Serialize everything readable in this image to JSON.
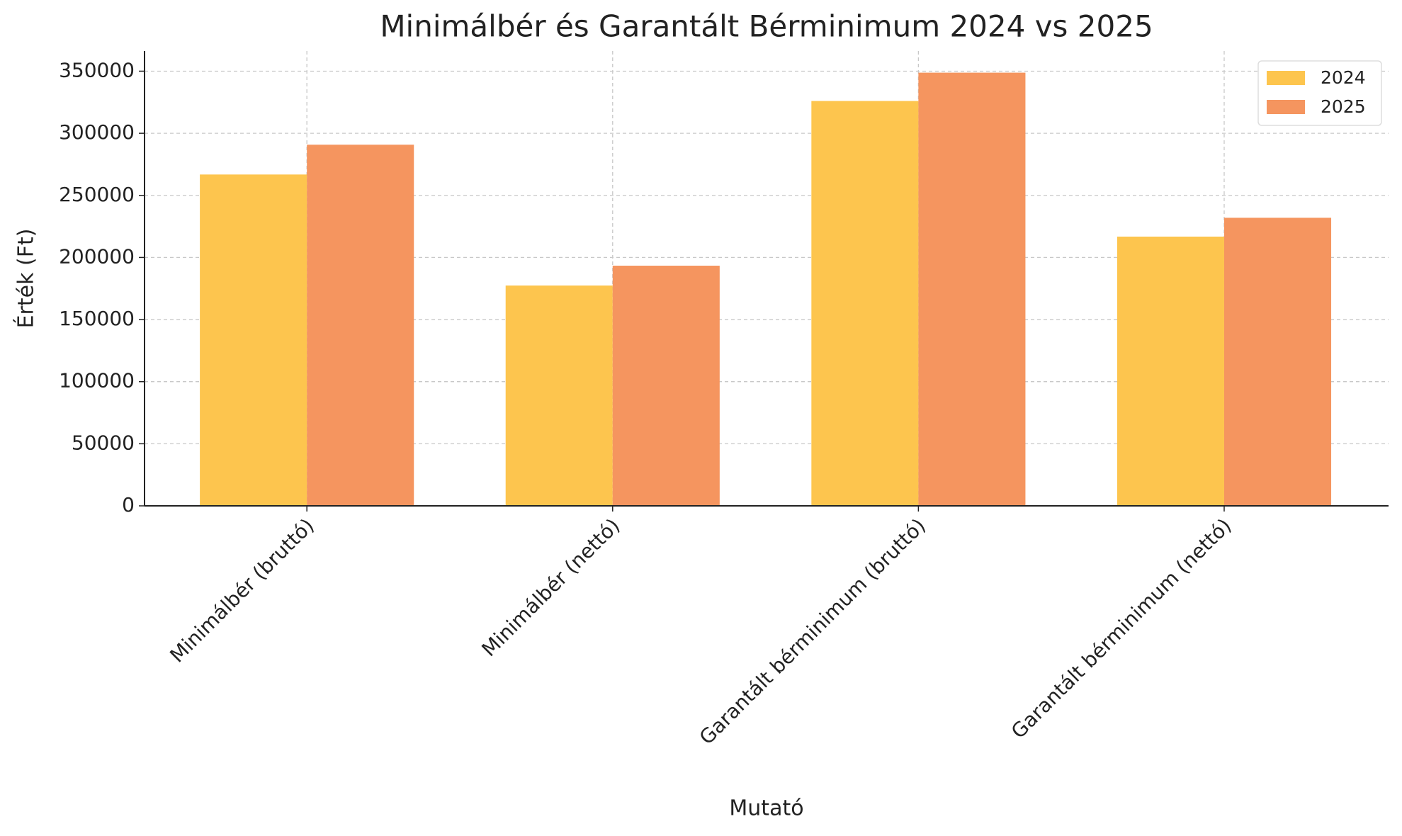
{
  "chart_data": {
    "type": "bar",
    "title": "Minimálbér és Garantált Bérminimum 2024 vs 2025",
    "x_label": "Mutató",
    "y_label": "Érték (Ft)",
    "categories": [
      "Minimálbér (bruttó)",
      "Minimálbér (nettó)",
      "Garantált bérminimum (bruttó)",
      "Garantált bérminimum (nettó)"
    ],
    "series": [
      {
        "name": "2024",
        "color": "#fdc54e",
        "values": [
          266800,
          177422,
          326000,
          216790
        ]
      },
      {
        "name": "2025",
        "color": "#f5955f",
        "values": [
          290800,
          193382,
          348800,
          231952
        ]
      }
    ],
    "ylim": [
      0,
      366240
    ],
    "yticks": [
      0,
      50000,
      100000,
      150000,
      200000,
      250000,
      300000,
      350000
    ],
    "grid": true,
    "legend": "upper right"
  }
}
